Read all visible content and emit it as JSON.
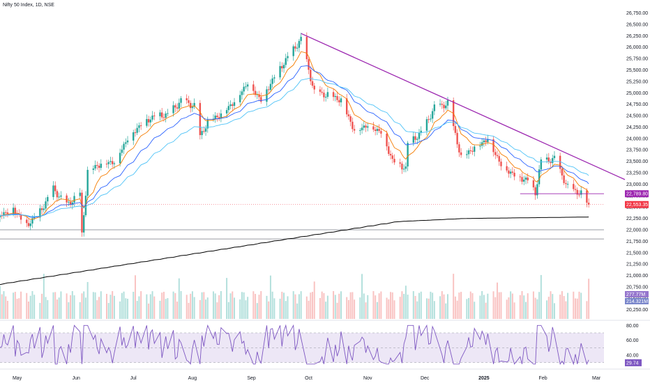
{
  "header": {
    "title": "Nifty 50 Index, 1D, NSE"
  },
  "colors": {
    "up": "#26a69a",
    "down": "#ef5350",
    "trendline": "#9c27b0",
    "ema_fast": "#f57c00",
    "ema_mid": "#2962ff",
    "ema_slow": "#4fc3f7",
    "sma_long": "#000000",
    "rsi_line": "#7e57c2",
    "rsi_bg": "#ede7f6",
    "support_line": "#787b86",
    "price_tag": "#f23645",
    "level_tag": "#9c27b0"
  },
  "chart_data": [
    {
      "type": "candlestick",
      "title": "Nifty 50 Index, 1D, NSE",
      "y_ticks": [
        "26,750.00",
        "26,500.00",
        "26,250.00",
        "26,000.00",
        "25,750.00",
        "25,500.00",
        "25,250.00",
        "25,000.00",
        "24,750.00",
        "24,500.00",
        "24,250.00",
        "24,000.00",
        "23,750.00",
        "23,500.00",
        "23,250.00",
        "23,000.00",
        "22,750.00",
        "22,500.00",
        "22,250.00",
        "22,000.00",
        "21,750.00",
        "21,500.00",
        "21,250.00",
        "21,000.00",
        "20,750.00",
        "20,500.00",
        "20,250.00"
      ],
      "ylim": [
        20200,
        26850
      ],
      "x_labels": [
        "May",
        "Jun",
        "Jul",
        "Aug",
        "Sep",
        "Oct",
        "Nov",
        "Dec",
        "2025",
        "Feb",
        "Mar"
      ],
      "last_price": "22,553.35",
      "marked_level": "22,789.80",
      "support_levels": [
        22000,
        21800
      ],
      "volume_labels": [
        "277.77M",
        "214.321M"
      ],
      "close_path": [
        {
          "d": "2024-04-22",
          "c": 22330
        },
        {
          "d": "2024-04-29",
          "c": 22470
        },
        {
          "d": "2024-05-06",
          "c": 22100
        },
        {
          "d": "2024-05-13",
          "c": 22400
        },
        {
          "d": "2024-05-20",
          "c": 22900
        },
        {
          "d": "2024-05-27",
          "c": 22550
        },
        {
          "d": "2024-06-03",
          "c": 22800
        },
        {
          "d": "2024-06-04",
          "c": 21900
        },
        {
          "d": "2024-06-07",
          "c": 23290
        },
        {
          "d": "2024-06-14",
          "c": 23460
        },
        {
          "d": "2024-06-21",
          "c": 23500
        },
        {
          "d": "2024-06-28",
          "c": 24010
        },
        {
          "d": "2024-07-05",
          "c": 24320
        },
        {
          "d": "2024-07-12",
          "c": 24500
        },
        {
          "d": "2024-07-19",
          "c": 24530
        },
        {
          "d": "2024-07-26",
          "c": 24830
        },
        {
          "d": "2024-08-02",
          "c": 24720
        },
        {
          "d": "2024-08-05",
          "c": 24050
        },
        {
          "d": "2024-08-09",
          "c": 24370
        },
        {
          "d": "2024-08-16",
          "c": 24540
        },
        {
          "d": "2024-08-23",
          "c": 24820
        },
        {
          "d": "2024-08-30",
          "c": 25230
        },
        {
          "d": "2024-09-06",
          "c": 24850
        },
        {
          "d": "2024-09-13",
          "c": 25360
        },
        {
          "d": "2024-09-20",
          "c": 25790
        },
        {
          "d": "2024-09-27",
          "c": 26180
        },
        {
          "d": "2024-10-04",
          "c": 25010
        },
        {
          "d": "2024-10-11",
          "c": 24960
        },
        {
          "d": "2024-10-18",
          "c": 24850
        },
        {
          "d": "2024-10-25",
          "c": 24180
        },
        {
          "d": "2024-11-01",
          "c": 24300
        },
        {
          "d": "2024-11-08",
          "c": 24150
        },
        {
          "d": "2024-11-14",
          "c": 23530
        },
        {
          "d": "2024-11-21",
          "c": 23350
        },
        {
          "d": "2024-11-22",
          "c": 23900
        },
        {
          "d": "2024-11-29",
          "c": 24130
        },
        {
          "d": "2024-12-06",
          "c": 24680
        },
        {
          "d": "2024-12-13",
          "c": 24770
        },
        {
          "d": "2024-12-20",
          "c": 23590
        },
        {
          "d": "2024-12-27",
          "c": 23810
        },
        {
          "d": "2025-01-03",
          "c": 24000
        },
        {
          "d": "2025-01-10",
          "c": 23430
        },
        {
          "d": "2025-01-17",
          "c": 23200
        },
        {
          "d": "2025-01-24",
          "c": 23090
        },
        {
          "d": "2025-01-28",
          "c": 22830
        },
        {
          "d": "2025-01-31",
          "c": 23510
        },
        {
          "d": "2025-02-07",
          "c": 23560
        },
        {
          "d": "2025-02-14",
          "c": 22930
        },
        {
          "d": "2025-02-21",
          "c": 22800
        },
        {
          "d": "2025-02-25",
          "c": 22550
        }
      ]
    },
    {
      "type": "line",
      "title": "",
      "y_ticks": [
        "80.00",
        "60.00",
        "40.00"
      ],
      "ylim": [
        25,
        85
      ],
      "last_value": "29.74",
      "bands": [
        70,
        50,
        30
      ]
    }
  ]
}
